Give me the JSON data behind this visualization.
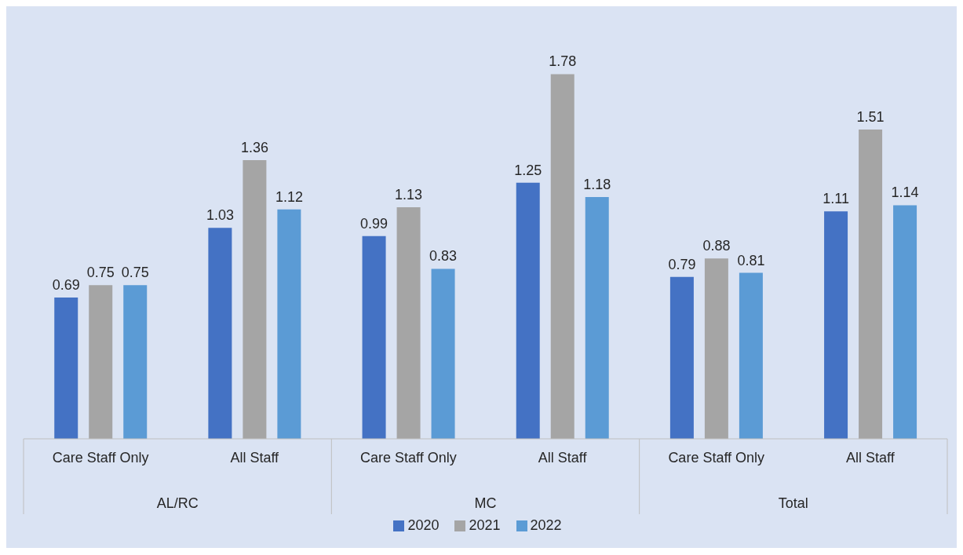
{
  "chart_data": {
    "type": "bar",
    "categories": [
      "Care Staff Only",
      "All Staff",
      "Care Staff Only",
      "All Staff",
      "Care Staff Only",
      "All Staff"
    ],
    "annotations": [
      "AL/RC",
      "MC",
      "Total"
    ],
    "series": [
      {
        "name": "2020",
        "color": "#4472c4",
        "values": [
          0.69,
          1.03,
          0.99,
          1.25,
          0.79,
          1.11
        ]
      },
      {
        "name": "2021",
        "color": "#a5a5a5",
        "values": [
          0.75,
          1.36,
          1.13,
          1.78,
          0.88,
          1.51
        ]
      },
      {
        "name": "2022",
        "color": "#5b9bd5",
        "values": [
          0.75,
          1.12,
          0.83,
          1.18,
          0.81,
          1.14
        ]
      }
    ],
    "data_labels": true,
    "grid": false,
    "legend": "bottom"
  }
}
